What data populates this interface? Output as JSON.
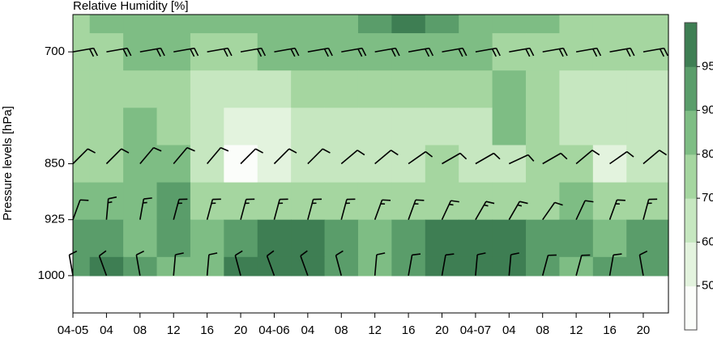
{
  "chart_data": {
    "type": "contour",
    "title": "Relative Humidity [%]",
    "y_label": "Pressure levels [hPa]",
    "xlim": [
      0,
      71
    ],
    "xticks": [
      {
        "value": 0,
        "label": "04-05"
      },
      {
        "value": 4,
        "label": "04"
      },
      {
        "value": 8,
        "label": "08"
      },
      {
        "value": 12,
        "label": "12"
      },
      {
        "value": 16,
        "label": "16"
      },
      {
        "value": 20,
        "label": "20"
      },
      {
        "value": 24,
        "label": "04-06"
      },
      {
        "value": 28,
        "label": "04"
      },
      {
        "value": 32,
        "label": "08"
      },
      {
        "value": 36,
        "label": "12"
      },
      {
        "value": 40,
        "label": "16"
      },
      {
        "value": 44,
        "label": "20"
      },
      {
        "value": 48,
        "label": "04-07"
      },
      {
        "value": 52,
        "label": "04"
      },
      {
        "value": 56,
        "label": "08"
      },
      {
        "value": 60,
        "label": "12"
      },
      {
        "value": 64,
        "label": "16"
      },
      {
        "value": 68,
        "label": "20"
      }
    ],
    "ylim": [
      1050,
      650
    ],
    "yticks": [
      700,
      850,
      925,
      1000
    ],
    "colorbar": {
      "levels": [
        50,
        60,
        70,
        80,
        90,
        95
      ],
      "colors": [
        "#fbfdfa",
        "#e3f3de",
        "#c6e7c0",
        "#a5d6a0",
        "#7ebd84",
        "#5a9d6a",
        "#3e7e53"
      ]
    },
    "field": {
      "x": [
        0,
        4,
        8,
        12,
        16,
        20,
        24,
        28,
        32,
        36,
        40,
        44,
        48,
        52,
        56,
        60,
        64,
        68
      ],
      "levels": [
        650,
        700,
        750,
        800,
        850,
        900,
        950,
        1000
      ],
      "values": [
        [
          75,
          80,
          85,
          85,
          80,
          80,
          85,
          85,
          85,
          90,
          95,
          90,
          85,
          80,
          80,
          75,
          75,
          75
        ],
        [
          70,
          75,
          80,
          80,
          75,
          75,
          80,
          80,
          80,
          85,
          85,
          85,
          80,
          75,
          75,
          75,
          70,
          70
        ],
        [
          70,
          70,
          70,
          70,
          65,
          65,
          65,
          70,
          70,
          70,
          70,
          70,
          70,
          80,
          75,
          65,
          65,
          65
        ],
        [
          70,
          75,
          80,
          70,
          60,
          55,
          55,
          60,
          65,
          65,
          65,
          65,
          65,
          80,
          75,
          65,
          60,
          60
        ],
        [
          75,
          75,
          80,
          80,
          65,
          45,
          55,
          60,
          65,
          65,
          65,
          70,
          65,
          65,
          70,
          70,
          55,
          60
        ],
        [
          80,
          85,
          85,
          90,
          75,
          75,
          75,
          75,
          75,
          70,
          70,
          70,
          70,
          70,
          75,
          85,
          70,
          70
        ],
        [
          90,
          90,
          85,
          90,
          85,
          90,
          95,
          95,
          90,
          85,
          90,
          95,
          95,
          95,
          90,
          90,
          85,
          90
        ],
        [
          90,
          95,
          90,
          85,
          85,
          95,
          95,
          95,
          90,
          85,
          90,
          95,
          95,
          95,
          90,
          85,
          90,
          90
        ]
      ]
    },
    "barbs": [
      {
        "level": 700,
        "dir": [
          80,
          80,
          80,
          80,
          80,
          80,
          80,
          80,
          80,
          80,
          80,
          80,
          80,
          80,
          80,
          80,
          80,
          80
        ],
        "speed": [
          20,
          20,
          20,
          20,
          20,
          20,
          20,
          20,
          20,
          20,
          20,
          20,
          20,
          20,
          20,
          20,
          20,
          20
        ]
      },
      {
        "level": 850,
        "dir": [
          45,
          45,
          40,
          40,
          40,
          45,
          45,
          45,
          50,
          50,
          55,
          60,
          60,
          65,
          60,
          50,
          55,
          50
        ],
        "speed": [
          10,
          10,
          10,
          10,
          10,
          10,
          10,
          10,
          10,
          10,
          10,
          10,
          10,
          10,
          10,
          10,
          10,
          10
        ]
      },
      {
        "level": 925,
        "dir": [
          20,
          5,
          10,
          15,
          15,
          15,
          15,
          15,
          15,
          20,
          20,
          25,
          30,
          30,
          35,
          25,
          20,
          15
        ],
        "speed": [
          10,
          15,
          15,
          15,
          15,
          15,
          15,
          15,
          15,
          15,
          15,
          15,
          15,
          15,
          10,
          10,
          15,
          15
        ]
      },
      {
        "level": 1000,
        "dir": [
          350,
          340,
          350,
          5,
          5,
          345,
          340,
          340,
          345,
          5,
          10,
          10,
          5,
          5,
          15,
          15,
          10,
          350
        ],
        "speed": [
          10,
          10,
          10,
          10,
          10,
          10,
          10,
          10,
          10,
          10,
          10,
          10,
          10,
          10,
          10,
          10,
          10,
          10
        ]
      }
    ]
  }
}
